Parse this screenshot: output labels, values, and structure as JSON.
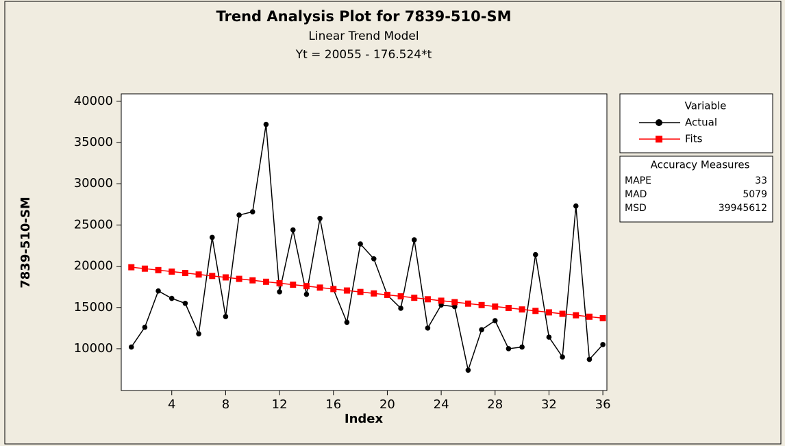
{
  "chart_data": {
    "type": "line",
    "title": "Trend Analysis Plot for 7839-510-SM",
    "subtitle": "Linear Trend Model",
    "equation": "Yt = 20055 - 176.524*t",
    "x_label": "Index",
    "y_label": "7839-510-SM",
    "x": [
      1,
      2,
      3,
      4,
      5,
      6,
      7,
      8,
      9,
      10,
      11,
      12,
      13,
      14,
      15,
      16,
      17,
      18,
      19,
      20,
      21,
      22,
      23,
      24,
      25,
      26,
      27,
      28,
      29,
      30,
      31,
      32,
      33,
      34,
      35,
      36
    ],
    "series": [
      {
        "name": "Actual",
        "color": "#000000",
        "marker": "circle",
        "values": [
          10200,
          12600,
          17000,
          16100,
          15500,
          11800,
          23500,
          13900,
          26200,
          26600,
          37200,
          16900,
          24400,
          16600,
          25800,
          17200,
          13200,
          22700,
          20900,
          16500,
          14900,
          23200,
          12500,
          15300,
          15100,
          7400,
          12300,
          13400,
          10000,
          10200,
          21400,
          11400,
          9000,
          27300,
          8700,
          10500
        ]
      },
      {
        "name": "Fits",
        "color": "#ff0000",
        "marker": "square",
        "values": [
          19878,
          19702,
          19525,
          19349,
          19172,
          18996,
          18819,
          18643,
          18466,
          18290,
          18113,
          17937,
          17760,
          17584,
          17407,
          17231,
          17054,
          16878,
          16701,
          16525,
          16348,
          16171,
          15995,
          15818,
          15642,
          15465,
          15289,
          15112,
          14936,
          14759,
          14583,
          14406,
          14230,
          14053,
          13877,
          13700
        ]
      }
    ],
    "xlim": [
      0.25,
      36.3
    ],
    "xticks": [
      4,
      8,
      12,
      16,
      20,
      24,
      28,
      32,
      36
    ],
    "ylim": [
      4930,
      40900
    ],
    "yticks": [
      10000,
      15000,
      20000,
      25000,
      30000,
      35000,
      40000
    ],
    "legend": {
      "title": "Variable",
      "position": "right"
    },
    "accuracy": {
      "title": "Accuracy Measures",
      "rows": [
        {
          "name": "MAPE",
          "value": 33
        },
        {
          "name": "MAD",
          "value": 5079
        },
        {
          "name": "MSD",
          "value": 39945612
        }
      ]
    }
  }
}
